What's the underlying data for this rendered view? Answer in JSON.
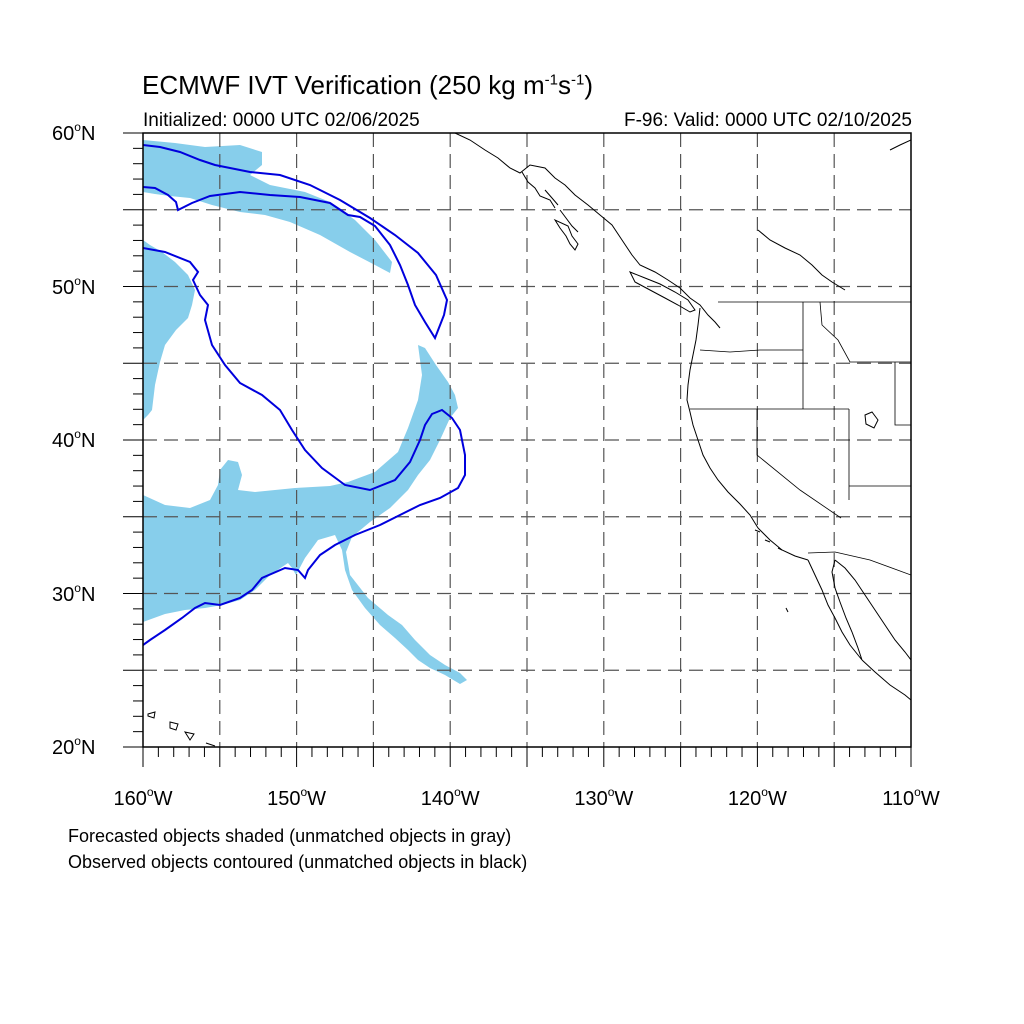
{
  "title": {
    "main": "ECMWF IVT Verification (250 kg m",
    "sup1": "-1",
    "mid": "s",
    "sup2": "-1",
    "end": ")"
  },
  "subtitle": {
    "initialized": "Initialized: 0000 UTC 02/06/2025",
    "valid": "F-96: Valid: 0000 UTC 02/10/2025"
  },
  "map": {
    "lon_range": [
      -160,
      -110
    ],
    "lat_range": [
      20,
      60
    ],
    "grid": "on",
    "lat_labels": [
      {
        "lat": 60,
        "num": "60",
        "deg": "o",
        "hem": "N"
      },
      {
        "lat": 50,
        "num": "50",
        "deg": "o",
        "hem": "N"
      },
      {
        "lat": 40,
        "num": "40",
        "deg": "o",
        "hem": "N"
      },
      {
        "lat": 30,
        "num": "30",
        "deg": "o",
        "hem": "N"
      },
      {
        "lat": 20,
        "num": "20",
        "deg": "o",
        "hem": "N"
      }
    ],
    "lon_labels": [
      {
        "lon": -160,
        "num": "160",
        "deg": "o",
        "hem": "W"
      },
      {
        "lon": -150,
        "num": "150",
        "deg": "o",
        "hem": "W"
      },
      {
        "lon": -140,
        "num": "140",
        "deg": "o",
        "hem": "W"
      },
      {
        "lon": -130,
        "num": "130",
        "deg": "o",
        "hem": "W"
      },
      {
        "lon": -120,
        "num": "120",
        "deg": "o",
        "hem": "W"
      },
      {
        "lon": -110,
        "num": "110",
        "deg": "o",
        "hem": "W"
      }
    ],
    "colors": {
      "forecast_fill": "#87ceeb",
      "observed_contour": "#0000dd",
      "coastline": "#000000",
      "grid": "#555555"
    }
  },
  "notes": {
    "forecast": "Forecasted objects shaded (unmatched objects in gray)",
    "observed": "Observed objects contoured (unmatched objects in black)"
  }
}
